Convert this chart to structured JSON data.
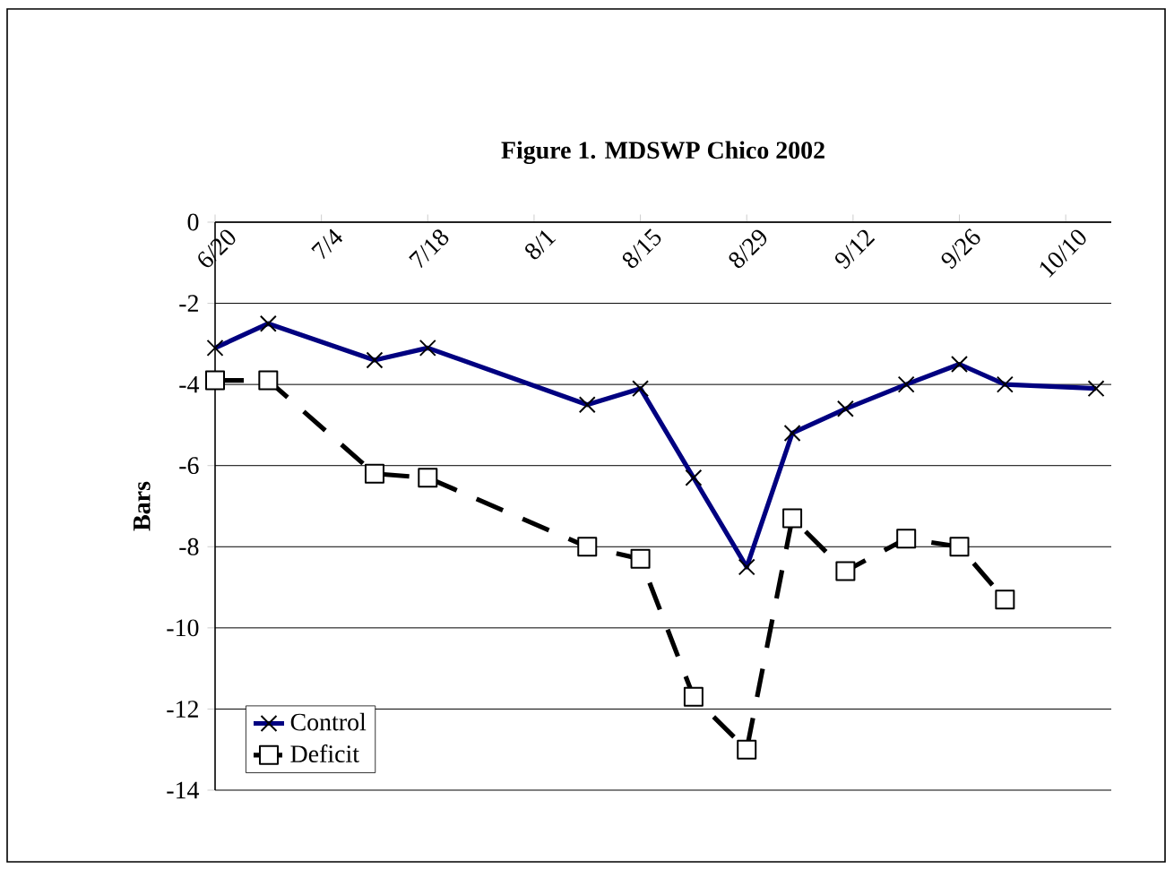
{
  "chart_data": {
    "type": "line",
    "title": "Figure 1. MDSWP Chico 2002",
    "ylabel": "Bars",
    "xlim": [
      "2002-06-20",
      "2002-10-16"
    ],
    "xticks": [
      {
        "value": "2002-06-20",
        "label": "6/20"
      },
      {
        "value": "2002-07-04",
        "label": "7/4"
      },
      {
        "value": "2002-07-18",
        "label": "7/18"
      },
      {
        "value": "2002-08-01",
        "label": "8/1"
      },
      {
        "value": "2002-08-15",
        "label": "8/15"
      },
      {
        "value": "2002-08-29",
        "label": "8/29"
      },
      {
        "value": "2002-09-12",
        "label": "9/12"
      },
      {
        "value": "2002-09-26",
        "label": "9/26"
      },
      {
        "value": "2002-10-10",
        "label": "10/10"
      }
    ],
    "ylim": [
      -14,
      0
    ],
    "yticks": [
      0,
      -2,
      -4,
      -6,
      -8,
      -10,
      -12,
      -14
    ],
    "grid": "y",
    "legend": "bottom left",
    "series": [
      {
        "name": "Control",
        "color": "#000080",
        "marker": "cross",
        "line_style": "solid",
        "x": [
          "2002-06-20",
          "2002-06-27",
          "2002-07-11",
          "2002-07-18",
          "2002-08-08",
          "2002-08-15",
          "2002-08-22",
          "2002-08-29",
          "2002-09-04",
          "2002-09-11",
          "2002-09-19",
          "2002-09-26",
          "2002-10-02",
          "2002-10-14"
        ],
        "values": [
          -3.1,
          -2.5,
          -3.4,
          -3.1,
          -4.5,
          -4.1,
          -6.3,
          -8.5,
          -5.2,
          -4.6,
          -4.0,
          -3.5,
          -4.0,
          -4.1
        ]
      },
      {
        "name": "Deficit",
        "color": "#000000",
        "marker": "square",
        "line_style": "dashed",
        "x": [
          "2002-06-20",
          "2002-06-27",
          "2002-07-11",
          "2002-07-18",
          "2002-08-08",
          "2002-08-15",
          "2002-08-22",
          "2002-08-29",
          "2002-09-04",
          "2002-09-11",
          "2002-09-19",
          "2002-09-26",
          "2002-10-02"
        ],
        "values": [
          -3.9,
          -3.9,
          -6.2,
          -6.3,
          -8.0,
          -8.3,
          -11.7,
          -13.0,
          -7.3,
          -8.6,
          -7.8,
          -8.0,
          -9.3
        ]
      }
    ]
  }
}
